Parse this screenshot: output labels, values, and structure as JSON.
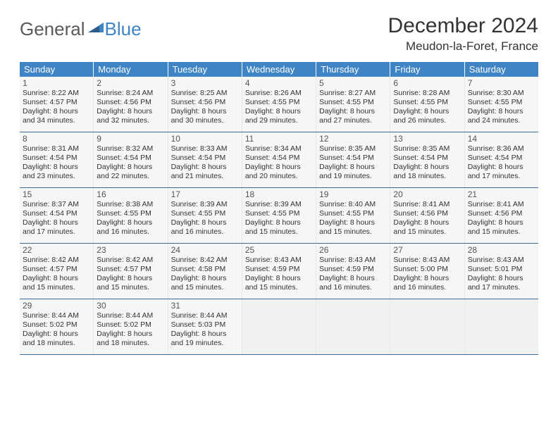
{
  "brand": {
    "part1": "General",
    "part2": "Blue",
    "logo_color": "#3f84c4"
  },
  "title": "December 2024",
  "location": "Meudon-la-Foret, France",
  "colors": {
    "header_bg": "#3f84c4",
    "header_text": "#ffffff",
    "row_border": "#3b6a9a",
    "cell_bg": "#f6f6f6",
    "empty_bg": "#f1f1f1",
    "body_text": "#333333"
  },
  "weekdays": [
    "Sunday",
    "Monday",
    "Tuesday",
    "Wednesday",
    "Thursday",
    "Friday",
    "Saturday"
  ],
  "weeks": [
    [
      {
        "day": 1,
        "sunrise": "8:22 AM",
        "sunset": "4:57 PM",
        "daylight": "8 hours and 34 minutes."
      },
      {
        "day": 2,
        "sunrise": "8:24 AM",
        "sunset": "4:56 PM",
        "daylight": "8 hours and 32 minutes."
      },
      {
        "day": 3,
        "sunrise": "8:25 AM",
        "sunset": "4:56 PM",
        "daylight": "8 hours and 30 minutes."
      },
      {
        "day": 4,
        "sunrise": "8:26 AM",
        "sunset": "4:55 PM",
        "daylight": "8 hours and 29 minutes."
      },
      {
        "day": 5,
        "sunrise": "8:27 AM",
        "sunset": "4:55 PM",
        "daylight": "8 hours and 27 minutes."
      },
      {
        "day": 6,
        "sunrise": "8:28 AM",
        "sunset": "4:55 PM",
        "daylight": "8 hours and 26 minutes."
      },
      {
        "day": 7,
        "sunrise": "8:30 AM",
        "sunset": "4:55 PM",
        "daylight": "8 hours and 24 minutes."
      }
    ],
    [
      {
        "day": 8,
        "sunrise": "8:31 AM",
        "sunset": "4:54 PM",
        "daylight": "8 hours and 23 minutes."
      },
      {
        "day": 9,
        "sunrise": "8:32 AM",
        "sunset": "4:54 PM",
        "daylight": "8 hours and 22 minutes."
      },
      {
        "day": 10,
        "sunrise": "8:33 AM",
        "sunset": "4:54 PM",
        "daylight": "8 hours and 21 minutes."
      },
      {
        "day": 11,
        "sunrise": "8:34 AM",
        "sunset": "4:54 PM",
        "daylight": "8 hours and 20 minutes."
      },
      {
        "day": 12,
        "sunrise": "8:35 AM",
        "sunset": "4:54 PM",
        "daylight": "8 hours and 19 minutes."
      },
      {
        "day": 13,
        "sunrise": "8:35 AM",
        "sunset": "4:54 PM",
        "daylight": "8 hours and 18 minutes."
      },
      {
        "day": 14,
        "sunrise": "8:36 AM",
        "sunset": "4:54 PM",
        "daylight": "8 hours and 17 minutes."
      }
    ],
    [
      {
        "day": 15,
        "sunrise": "8:37 AM",
        "sunset": "4:54 PM",
        "daylight": "8 hours and 17 minutes."
      },
      {
        "day": 16,
        "sunrise": "8:38 AM",
        "sunset": "4:55 PM",
        "daylight": "8 hours and 16 minutes."
      },
      {
        "day": 17,
        "sunrise": "8:39 AM",
        "sunset": "4:55 PM",
        "daylight": "8 hours and 16 minutes."
      },
      {
        "day": 18,
        "sunrise": "8:39 AM",
        "sunset": "4:55 PM",
        "daylight": "8 hours and 15 minutes."
      },
      {
        "day": 19,
        "sunrise": "8:40 AM",
        "sunset": "4:55 PM",
        "daylight": "8 hours and 15 minutes."
      },
      {
        "day": 20,
        "sunrise": "8:41 AM",
        "sunset": "4:56 PM",
        "daylight": "8 hours and 15 minutes."
      },
      {
        "day": 21,
        "sunrise": "8:41 AM",
        "sunset": "4:56 PM",
        "daylight": "8 hours and 15 minutes."
      }
    ],
    [
      {
        "day": 22,
        "sunrise": "8:42 AM",
        "sunset": "4:57 PM",
        "daylight": "8 hours and 15 minutes."
      },
      {
        "day": 23,
        "sunrise": "8:42 AM",
        "sunset": "4:57 PM",
        "daylight": "8 hours and 15 minutes."
      },
      {
        "day": 24,
        "sunrise": "8:42 AM",
        "sunset": "4:58 PM",
        "daylight": "8 hours and 15 minutes."
      },
      {
        "day": 25,
        "sunrise": "8:43 AM",
        "sunset": "4:59 PM",
        "daylight": "8 hours and 15 minutes."
      },
      {
        "day": 26,
        "sunrise": "8:43 AM",
        "sunset": "4:59 PM",
        "daylight": "8 hours and 16 minutes."
      },
      {
        "day": 27,
        "sunrise": "8:43 AM",
        "sunset": "5:00 PM",
        "daylight": "8 hours and 16 minutes."
      },
      {
        "day": 28,
        "sunrise": "8:43 AM",
        "sunset": "5:01 PM",
        "daylight": "8 hours and 17 minutes."
      }
    ],
    [
      {
        "day": 29,
        "sunrise": "8:44 AM",
        "sunset": "5:02 PM",
        "daylight": "8 hours and 18 minutes."
      },
      {
        "day": 30,
        "sunrise": "8:44 AM",
        "sunset": "5:02 PM",
        "daylight": "8 hours and 18 minutes."
      },
      {
        "day": 31,
        "sunrise": "8:44 AM",
        "sunset": "5:03 PM",
        "daylight": "8 hours and 19 minutes."
      },
      null,
      null,
      null,
      null
    ]
  ],
  "labels": {
    "sunrise": "Sunrise:",
    "sunset": "Sunset:",
    "daylight": "Daylight:"
  }
}
